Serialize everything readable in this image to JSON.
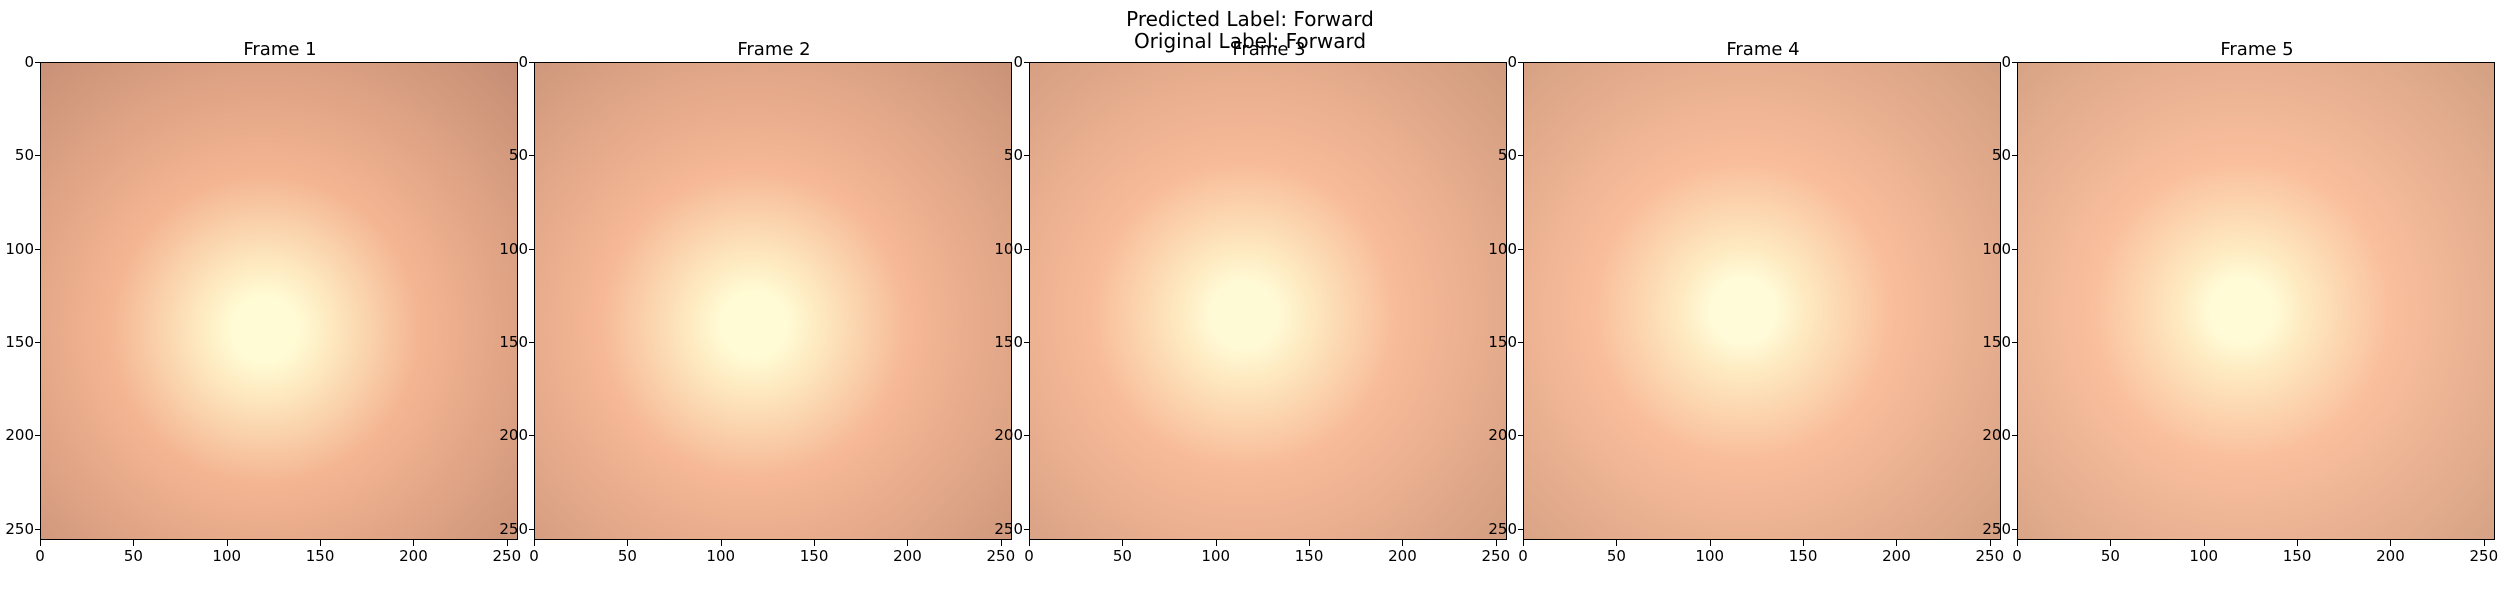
{
  "figure": {
    "predicted_label": "Predicted Label: Forward",
    "original_label": "Original Label: Forward"
  },
  "frames": [
    {
      "title": "Frame 1",
      "glow_x": 0.47,
      "glow_y": 0.56,
      "edge_color": "#c48d74",
      "mid_color": "#f4b592",
      "core_color": "#fffbd4"
    },
    {
      "title": "Frame 2",
      "glow_x": 0.46,
      "glow_y": 0.55,
      "edge_color": "#c99378",
      "mid_color": "#f6b896",
      "core_color": "#fffbd4"
    },
    {
      "title": "Frame 3",
      "glow_x": 0.45,
      "glow_y": 0.53,
      "edge_color": "#cf9a7e",
      "mid_color": "#f8bb99",
      "core_color": "#fffad6"
    },
    {
      "title": "Frame 4",
      "glow_x": 0.46,
      "glow_y": 0.52,
      "edge_color": "#d19d80",
      "mid_color": "#f9bd9b",
      "core_color": "#fffbd8"
    },
    {
      "title": "Frame 5",
      "glow_x": 0.47,
      "glow_y": 0.52,
      "edge_color": "#d3a083",
      "mid_color": "#fabf9d",
      "core_color": "#fffbd6"
    }
  ],
  "axes": {
    "x_ticks": [
      "0",
      "50",
      "100",
      "150",
      "200",
      "250"
    ],
    "y_ticks": [
      "0",
      "50",
      "100",
      "150",
      "200",
      "250"
    ],
    "x_tick_values": [
      0,
      50,
      100,
      150,
      200,
      250
    ],
    "y_tick_values": [
      0,
      50,
      100,
      150,
      200,
      250
    ],
    "extent": 256
  }
}
